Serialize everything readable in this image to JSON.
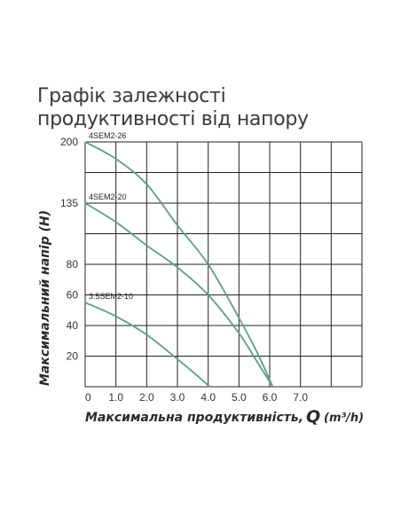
{
  "title": "Графік залежності продуктивності від напору",
  "chart_data": {
    "type": "line",
    "xlabel": "Максимальна продуктивність,",
    "xlabel_symbol": "Q",
    "xlabel_unit": "(m³/h)",
    "ylabel": "Максимальний напір (Н)",
    "x_ticks": [
      "0",
      "1.0",
      "2.0",
      "3.0",
      "4.0",
      "5.0",
      "6.0",
      "7.0"
    ],
    "y_ticks": [
      "20",
      "40",
      "60",
      "80",
      "135",
      "200"
    ],
    "y_tick_rows": [
      1,
      2,
      3,
      4,
      6,
      8
    ],
    "grid": true,
    "line_color": "#5f9e86",
    "series": [
      {
        "name": "4SEM2-26",
        "points": [
          [
            0,
            200
          ],
          [
            1,
            182
          ],
          [
            2,
            155
          ],
          [
            3,
            115
          ],
          [
            4,
            80
          ],
          [
            5,
            45
          ],
          [
            5.6,
            22
          ],
          [
            6.1,
            0
          ]
        ]
      },
      {
        "name": "4SEM2-20",
        "points": [
          [
            0,
            135
          ],
          [
            1,
            118
          ],
          [
            2,
            97
          ],
          [
            3,
            78
          ],
          [
            4,
            60
          ],
          [
            5,
            35
          ],
          [
            5.6,
            16
          ],
          [
            6.1,
            0
          ]
        ]
      },
      {
        "name": "3.5SEM2-10",
        "points": [
          [
            0,
            55
          ],
          [
            1,
            46
          ],
          [
            2,
            34
          ],
          [
            3,
            18
          ],
          [
            3.6,
            8
          ],
          [
            4.05,
            0
          ]
        ]
      }
    ]
  }
}
